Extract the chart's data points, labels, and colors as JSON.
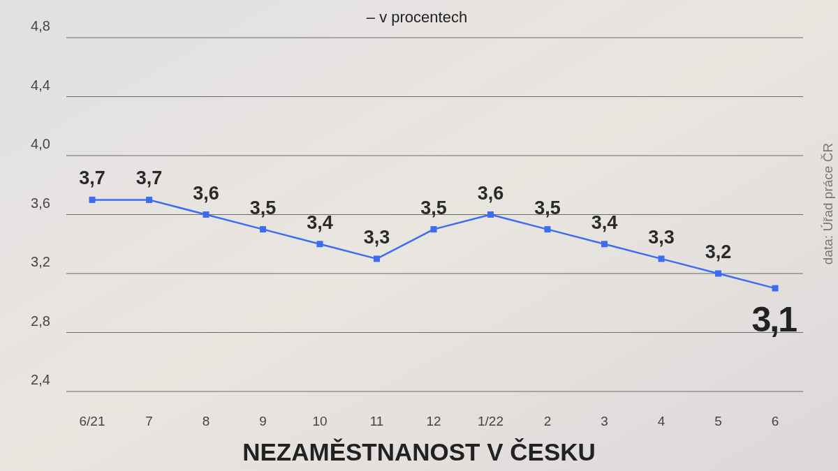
{
  "chart_data": {
    "type": "line",
    "title": "NEZAMĚSTNANOST V ČESKU",
    "subtitle": "– v procentech",
    "annotations": [
      "data: Úřad práce ČR"
    ],
    "categories": [
      "6/21",
      "7",
      "8",
      "9",
      "10",
      "11",
      "12",
      "1/22",
      "2",
      "3",
      "4",
      "5",
      "6"
    ],
    "series": [
      {
        "color": "#3b6cf2",
        "values": [
          3.7,
          3.7,
          3.6,
          3.5,
          3.4,
          3.3,
          3.5,
          3.6,
          3.5,
          3.4,
          3.3,
          3.2,
          3.1
        ],
        "value_labels": [
          "3,7",
          "3,7",
          "3,6",
          "3,5",
          "3,4",
          "3,3",
          "3,5",
          "3,6",
          "3,5",
          "3,4",
          "3,3",
          "3,2",
          "3,1"
        ]
      }
    ],
    "ylim": [
      2.4,
      4.8
    ],
    "yticks": [
      {
        "value": 2.4,
        "label": "2,4"
      },
      {
        "value": 2.8,
        "label": "2,8"
      },
      {
        "value": 3.2,
        "label": "3,2"
      },
      {
        "value": 3.6,
        "label": "3,6"
      },
      {
        "value": 4.0,
        "label": "4,0"
      },
      {
        "value": 4.4,
        "label": "4,4"
      },
      {
        "value": 4.8,
        "label": "4,8"
      }
    ],
    "grid": "y",
    "marker": "square",
    "line_style": "solid"
  }
}
